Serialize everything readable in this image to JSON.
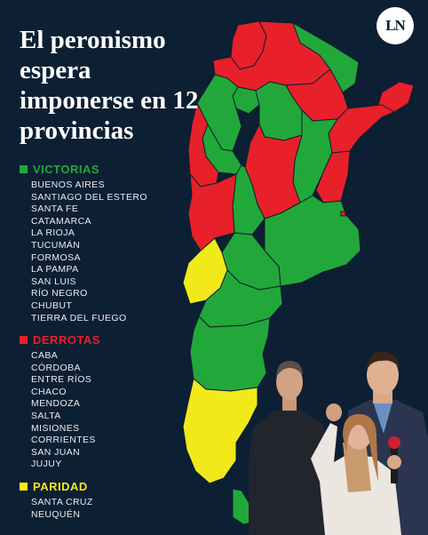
{
  "title": "El peronismo espera imponerse en 12 provincias",
  "logo": "LN",
  "colors": {
    "background": "#0d1f33",
    "victorias": "#22a83a",
    "derrotas": "#e8202a",
    "paridad": "#f2e91a"
  },
  "legend": {
    "victorias": {
      "label": "VICTORIAS",
      "items": [
        "BUENOS AIRES",
        "SANTIAGO DEL ESTERO",
        "SANTA FE",
        "CATAMARCA",
        "LA RIOJA",
        "TUCUMÁN",
        "FORMOSA",
        "LA PAMPA",
        "SAN LUIS",
        "RÍO NEGRO",
        "CHUBUT",
        "TIERRA DEL FUEGO"
      ]
    },
    "derrotas": {
      "label": "DERROTAS",
      "items": [
        "CABA",
        "CÓRDOBA",
        "ENTRE RÍOS",
        "CHACO",
        "MENDOZA",
        "SALTA",
        "MISIONES",
        "CORRIENTES",
        "SAN JUAN",
        "JUJUY"
      ]
    },
    "paridad": {
      "label": "PARIDAD",
      "items": [
        "SANTA CRUZ",
        "NEUQUÉN"
      ]
    }
  }
}
